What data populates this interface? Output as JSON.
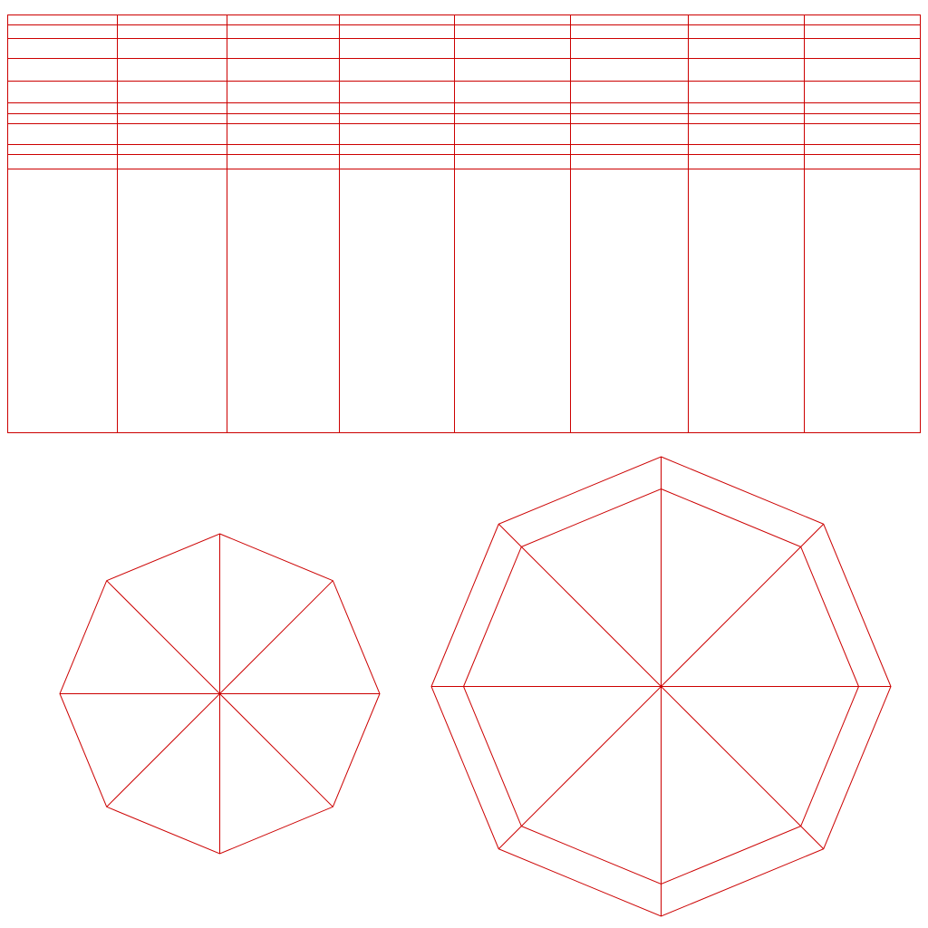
{
  "uv_layout": {
    "line_color": "#cc0000",
    "background_color": "#ffffff",
    "strip": {
      "columns": 8,
      "rows": 10
    },
    "cap_octagon": {
      "sides": 8,
      "pattern": "center-fan"
    },
    "ring_octagon": {
      "sides": 8,
      "pattern": "inset-ring-with-center-fan"
    }
  }
}
